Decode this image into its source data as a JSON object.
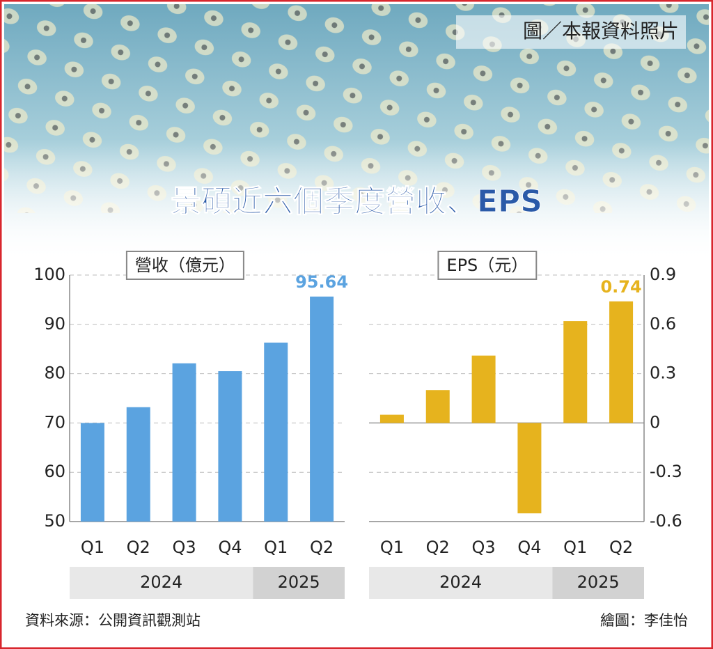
{
  "photo_credit": "圖／本報資料照片",
  "title": "景碩近六個季度營收、EPS",
  "source": "資料來源：公開資訊觀測站",
  "author": "繪圖：李佳怡",
  "chart_data": [
    {
      "type": "bar",
      "axis_label": "營收（億元）",
      "categories": [
        "Q1",
        "Q2",
        "Q3",
        "Q4",
        "Q1",
        "Q2"
      ],
      "groups": [
        {
          "label": "2024",
          "count": 4
        },
        {
          "label": "2025",
          "count": 2
        }
      ],
      "values": [
        70.0,
        73.2,
        82.1,
        80.5,
        86.3,
        95.64
      ],
      "value_labels": [
        null,
        null,
        null,
        null,
        null,
        "95.64"
      ],
      "color": "#5ba3e0",
      "ylim": [
        50,
        100
      ],
      "yticks": [
        50,
        60,
        70,
        80,
        90,
        100
      ],
      "yaxis_position": "left",
      "grid": true
    },
    {
      "type": "bar",
      "axis_label": "EPS（元）",
      "categories": [
        "Q1",
        "Q2",
        "Q3",
        "Q4",
        "Q1",
        "Q2"
      ],
      "groups": [
        {
          "label": "2024",
          "count": 4
        },
        {
          "label": "2025",
          "count": 2
        }
      ],
      "values": [
        0.05,
        0.2,
        0.41,
        -0.55,
        0.62,
        0.74
      ],
      "value_labels": [
        null,
        null,
        null,
        null,
        null,
        "0.74"
      ],
      "color": "#e6b31e",
      "ylim": [
        -0.6,
        0.9
      ],
      "yticks": [
        -0.6,
        -0.3,
        0,
        0.3,
        0.6,
        0.9
      ],
      "yaxis_position": "right",
      "grid": true
    }
  ]
}
